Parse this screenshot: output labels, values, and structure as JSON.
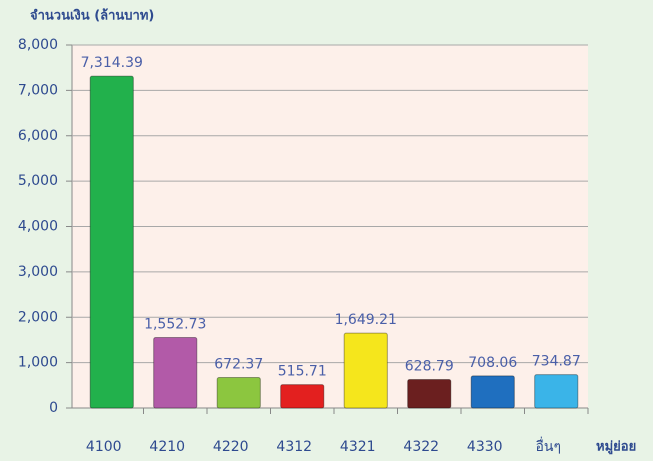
{
  "chart_data": {
    "type": "bar",
    "y_label": "จำนวนเงิน (ล้านบาท)",
    "x_label": "หมู่ย่อย",
    "categories": [
      "4100",
      "4210",
      "4220",
      "4312",
      "4321",
      "4322",
      "4330",
      "อื่นๆ"
    ],
    "values": [
      7314.39,
      1552.73,
      672.37,
      515.71,
      1649.21,
      628.79,
      708.06,
      734.87
    ],
    "value_labels": [
      "7,314.39",
      "1,552.73",
      "672.37",
      "515.71",
      "1,649.21",
      "628.79",
      "708.06",
      "734.87"
    ],
    "colors": [
      "#22b14c",
      "#b25aa8",
      "#8cc63f",
      "#e3201f",
      "#f5e61c",
      "#6b1f1f",
      "#1f6fbf",
      "#3ab4e8"
    ],
    "ylim": [
      0,
      8000
    ],
    "yticks": [
      0,
      {
        "value": 1000,
        "label": "1,000"
      },
      {
        "value": 2000,
        "label": "2,000"
      },
      {
        "value": 3000,
        "label": "3,000"
      },
      {
        "value": 4000,
        "label": "4,000"
      },
      {
        "value": 5000,
        "label": "5,000"
      },
      {
        "value": 6000,
        "label": "6,000"
      },
      {
        "value": 7000,
        "label": "7,000"
      },
      {
        "value": 8000,
        "label": "8,000"
      }
    ],
    "grid": true
  }
}
